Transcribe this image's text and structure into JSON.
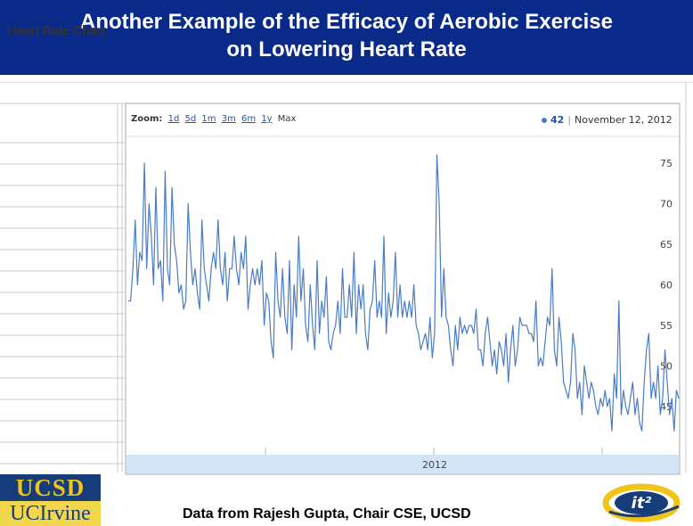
{
  "slide": {
    "title_line1": "Another Example of the Efficacy of Aerobic Exercise",
    "title_line2": "on Lowering Heart Rate",
    "caption": "Data from Rajesh Gupta, Chair CSE, UCSD"
  },
  "sheet": {
    "title": "Heart Rate Chart"
  },
  "toolbar": {
    "zoom_label": "Zoom:",
    "zoom_options": [
      "1d",
      "5d",
      "1m",
      "3m",
      "6m",
      "1y"
    ],
    "zoom_max": "Max",
    "readout_value": "42",
    "readout_separator": "|",
    "readout_date": "November 12, 2012"
  },
  "logos": {
    "ucsd": "UCSD",
    "uci": "UCIrvine",
    "it2": "it²"
  },
  "colors": {
    "title_bg": "#0a2a8a",
    "series": "#4a7cc4",
    "navigator": "#d4e4f7",
    "ucsd_blue": "#163d7a",
    "ucsd_gold": "#f0c419"
  },
  "chart_data": {
    "type": "line",
    "title": "",
    "xlabel": "",
    "ylabel": "",
    "yticks": [
      45,
      50,
      55,
      60,
      65,
      70,
      75
    ],
    "ylim": [
      42,
      78
    ],
    "x_axis_labels": [
      "2012"
    ],
    "grid": false,
    "series": [
      {
        "values": [
          58,
          58,
          62,
          68,
          60,
          64,
          63,
          75,
          62,
          70,
          66,
          60,
          72,
          62,
          63,
          58,
          74,
          62,
          60,
          72,
          65,
          63,
          59,
          60,
          57,
          58,
          70,
          64,
          60,
          62,
          59,
          57,
          68,
          62,
          60,
          58,
          62,
          64,
          62,
          68,
          62,
          60,
          64,
          58,
          62,
          62,
          66,
          62,
          60,
          64,
          62,
          66,
          57,
          60,
          62,
          60,
          62,
          60,
          63,
          55,
          59,
          58,
          53,
          51,
          64,
          58,
          56,
          62,
          56,
          54,
          63,
          52,
          60,
          56,
          66,
          58,
          62,
          55,
          53,
          60,
          55,
          52,
          63,
          54,
          58,
          56,
          61,
          53,
          52,
          54,
          55,
          58,
          54,
          62,
          56,
          56,
          60,
          56,
          64,
          54,
          60,
          57,
          60,
          54,
          52,
          57,
          58,
          63,
          56,
          58,
          56,
          66,
          54,
          59,
          56,
          58,
          64,
          56,
          60,
          56,
          58,
          56,
          58,
          56,
          60,
          55,
          54,
          52,
          53,
          54,
          52,
          56,
          51,
          54,
          76,
          70,
          56,
          62,
          56,
          55,
          52,
          50,
          55,
          52,
          56,
          54,
          55,
          54,
          55,
          55,
          54,
          57,
          52,
          52,
          50,
          54,
          56,
          53,
          50,
          52,
          49,
          53,
          52,
          50,
          54,
          48,
          52,
          55,
          50,
          52,
          56,
          55,
          55,
          55,
          54,
          54,
          53,
          58,
          50,
          51,
          50,
          53,
          56,
          55,
          62,
          52,
          50,
          56,
          53,
          48,
          47,
          46,
          48,
          54,
          52,
          46,
          48,
          44,
          50,
          48,
          46,
          48,
          47,
          45,
          44,
          46,
          45,
          47,
          45,
          46,
          42,
          49,
          46,
          58,
          44,
          47,
          45,
          44,
          46,
          48,
          44,
          46,
          43,
          42,
          48,
          52,
          54,
          46,
          48,
          46,
          50,
          44,
          46,
          52,
          48,
          44,
          46,
          42,
          47,
          46
        ]
      }
    ]
  }
}
